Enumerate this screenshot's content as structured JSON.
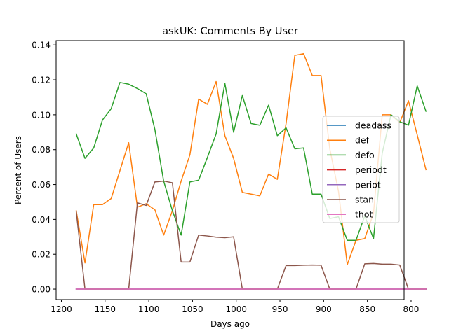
{
  "chart_data": {
    "type": "line",
    "title": "askUK: Comments By User",
    "xlabel": "Days ago",
    "ylabel": "Percent of Users",
    "xlim": [
      1206,
      808
    ],
    "ylim": [
      -0.006,
      0.1425
    ],
    "x_inverted": true,
    "grid": false,
    "legend_position": "right",
    "x_ticks": [
      1200,
      1150,
      1100,
      1050,
      1000,
      950,
      900,
      850,
      800
    ],
    "x_tick_labels": [
      "1200",
      "1150",
      "1100",
      "1050",
      "1000",
      "950",
      "900",
      "850",
      "800"
    ],
    "y_ticks": [
      0.0,
      0.02,
      0.04,
      0.06,
      0.08,
      0.1,
      0.12,
      0.14
    ],
    "y_tick_labels": [
      "0.00",
      "0.02",
      "0.04",
      "0.06",
      "0.08",
      "0.10",
      "0.12",
      "0.14"
    ],
    "x": [
      1183,
      1173,
      1163,
      1153,
      1143,
      1133,
      1123,
      1113,
      1103,
      1093,
      1083,
      1073,
      1063,
      1053,
      1043,
      1033,
      1023,
      1013,
      1003,
      993,
      983,
      973,
      963,
      953,
      943,
      933,
      923,
      913,
      903,
      893,
      883,
      873,
      863,
      853,
      843,
      833,
      823,
      813,
      803,
      793,
      783
    ],
    "series": [
      {
        "name": "deadass",
        "color": "#1f77b4",
        "values": [
          0.0,
          0.0,
          0.0,
          0.0,
          0.0,
          0.0,
          0.0,
          0.0,
          0.0,
          0.0,
          0.0,
          0.0,
          0.0,
          0.0,
          0.0,
          0.0,
          0.0,
          0.0,
          0.0,
          0.0,
          0.0,
          0.0,
          0.0,
          0.0,
          0.0,
          0.0,
          0.0,
          0.0,
          0.0,
          0.0,
          0.0,
          0.0,
          0.0,
          0.0,
          0.0,
          0.0,
          0.0,
          0.0,
          0.0,
          0.0,
          0.0
        ]
      },
      {
        "name": "def",
        "color": "#ff7f0e",
        "values": [
          0.045,
          0.015,
          0.0485,
          0.0485,
          0.052,
          0.068,
          0.084,
          0.047,
          0.049,
          0.0455,
          0.031,
          0.045,
          0.062,
          0.077,
          0.109,
          0.106,
          0.119,
          0.088,
          0.075,
          0.0555,
          0.0545,
          0.0535,
          0.066,
          0.063,
          0.095,
          0.134,
          0.135,
          0.1225,
          0.1225,
          0.0805,
          0.056,
          0.014,
          0.028,
          0.029,
          0.0435,
          0.1,
          0.1,
          0.0955,
          0.108,
          0.0885,
          0.0685
        ]
      },
      {
        "name": "defo",
        "color": "#2ca02c",
        "values": [
          0.089,
          0.075,
          0.081,
          0.097,
          0.1035,
          0.1185,
          0.1175,
          0.115,
          0.112,
          0.0915,
          0.062,
          0.045,
          0.031,
          0.0615,
          0.0625,
          0.0755,
          0.089,
          0.118,
          0.09,
          0.111,
          0.095,
          0.094,
          0.1055,
          0.088,
          0.0925,
          0.0805,
          0.081,
          0.0545,
          0.0545,
          0.0405,
          0.0415,
          0.028,
          0.028,
          0.042,
          0.029,
          0.078,
          0.1,
          0.096,
          0.094,
          0.1165,
          0.102
        ]
      },
      {
        "name": "periodt",
        "color": "#d62728",
        "values": [
          0.0,
          0.0,
          0.0,
          0.0,
          0.0,
          0.0,
          0.0,
          0.0,
          0.0,
          0.0,
          0.0,
          0.0,
          0.0,
          0.0,
          0.0,
          0.0,
          0.0,
          0.0,
          0.0,
          0.0,
          0.0,
          0.0,
          0.0,
          0.0,
          0.0,
          0.0,
          0.0,
          0.0,
          0.0,
          0.0,
          0.0,
          0.0,
          0.0,
          0.0,
          0.0,
          0.0,
          0.0,
          0.0,
          0.0,
          0.0,
          0.0
        ]
      },
      {
        "name": "periot",
        "color": "#9467bd",
        "values": [
          0.0,
          0.0,
          0.0,
          0.0,
          0.0,
          0.0,
          0.0,
          0.0,
          0.0,
          0.0,
          0.0,
          0.0,
          0.0,
          0.0,
          0.0,
          0.0,
          0.0,
          0.0,
          0.0,
          0.0,
          0.0,
          0.0,
          0.0,
          0.0,
          0.0,
          0.0,
          0.0,
          0.0,
          0.0,
          0.0,
          0.0,
          0.0,
          0.0,
          0.0,
          0.0,
          0.0,
          0.0,
          0.0,
          0.0,
          0.0,
          0.0
        ]
      },
      {
        "name": "stan",
        "color": "#8c564b",
        "values": [
          0.0445,
          0.0,
          0.0,
          0.0,
          0.0,
          0.0,
          0.0,
          0.0495,
          0.048,
          0.0615,
          0.062,
          0.061,
          0.0155,
          0.0155,
          0.031,
          0.0305,
          0.0298,
          0.0295,
          0.03,
          0.0,
          0.0,
          0.0,
          0.0,
          0.0,
          0.0135,
          0.0135,
          0.0137,
          0.0138,
          0.0137,
          0.0,
          0.0,
          0.0,
          0.0,
          0.0145,
          0.0147,
          0.0143,
          0.0143,
          0.0138,
          0.0,
          0.0,
          0.0
        ]
      },
      {
        "name": "thot",
        "color": "#e377c2",
        "values": [
          0.0,
          0.0,
          0.0,
          0.0,
          0.0,
          0.0,
          0.0,
          0.0,
          0.0,
          0.0,
          0.0,
          0.0,
          0.0,
          0.0,
          0.0,
          0.0,
          0.0,
          0.0,
          0.0,
          0.0,
          0.0,
          0.0,
          0.0,
          0.0,
          0.0,
          0.0,
          0.0,
          0.0,
          0.0,
          0.0,
          0.0,
          0.0,
          0.0,
          0.0,
          0.0,
          0.0,
          0.0,
          0.0,
          0.0,
          0.0,
          0.0
        ]
      }
    ]
  }
}
